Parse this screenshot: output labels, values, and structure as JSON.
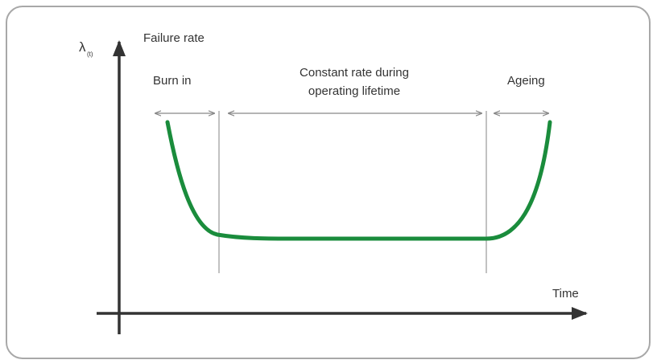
{
  "axes": {
    "y_symbol": "λ",
    "y_subscript": "(t)",
    "y_label": "Failure rate",
    "x_label": "Time"
  },
  "phases": [
    {
      "label_lines": [
        "Burn in"
      ]
    },
    {
      "label_lines": [
        "Constant rate during",
        "operating lifetime"
      ]
    },
    {
      "label_lines": [
        "Ageing"
      ]
    }
  ]
}
